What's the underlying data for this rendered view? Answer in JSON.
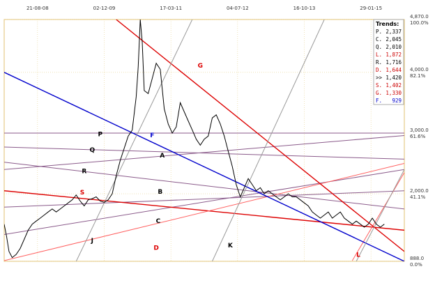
{
  "chart_data": {
    "type": "line",
    "x_tick_labels": [
      "21-08-08",
      "02-12-09",
      "17-03-11",
      "04-07-12",
      "16-10-13",
      "29-01-15"
    ],
    "y_tick_labels": [
      {
        "price": "4,870.0",
        "pct": "100.0%"
      },
      {
        "price": "4,000.0",
        "pct": "82.1%"
      },
      {
        "price": "3,000.0",
        "pct": "61.6%"
      },
      {
        "price": "2,000.0",
        "pct": "41.1%"
      },
      {
        "price": "888.0",
        "pct": "0.0%"
      }
    ],
    "ylim": [
      888,
      4870
    ],
    "grid": true,
    "legend_position": "top-right",
    "legend": {
      "title": "Trends:",
      "items": [
        {
          "label": "P.",
          "value": "2,337",
          "color": "#000000"
        },
        {
          "label": "C.",
          "value": "2,045",
          "color": "#000000"
        },
        {
          "label": "Q.",
          "value": "2,010",
          "color": "#000000"
        },
        {
          "label": "L.",
          "value": "1,872",
          "color": "#cc0000"
        },
        {
          "label": "R.",
          "value": "1,716",
          "color": "#000000"
        },
        {
          "label": "D.",
          "value": "1,644",
          "color": "#cc0000"
        },
        {
          "label": ">>",
          "value": "1,420",
          "color": "#000000"
        },
        {
          "label": "S.",
          "value": "1,402",
          "color": "#cc0000"
        },
        {
          "label": "G.",
          "value": "1,330",
          "color": "#cc0000"
        },
        {
          "label": "F.",
          "value": "929",
          "color": "#0000cc"
        }
      ]
    },
    "series": [
      {
        "values": [
          [
            0.0,
            1500
          ],
          [
            0.006,
            1300
          ],
          [
            0.012,
            1050
          ],
          [
            0.02,
            950
          ],
          [
            0.03,
            1000
          ],
          [
            0.04,
            1100
          ],
          [
            0.05,
            1250
          ],
          [
            0.06,
            1400
          ],
          [
            0.07,
            1500
          ],
          [
            0.08,
            1550
          ],
          [
            0.09,
            1600
          ],
          [
            0.1,
            1650
          ],
          [
            0.11,
            1700
          ],
          [
            0.12,
            1750
          ],
          [
            0.13,
            1700
          ],
          [
            0.14,
            1750
          ],
          [
            0.15,
            1800
          ],
          [
            0.16,
            1850
          ],
          [
            0.17,
            1900
          ],
          [
            0.18,
            1980
          ],
          [
            0.19,
            1880
          ],
          [
            0.2,
            1800
          ],
          [
            0.21,
            1900
          ],
          [
            0.22,
            1920
          ],
          [
            0.23,
            1950
          ],
          [
            0.24,
            1880
          ],
          [
            0.25,
            1860
          ],
          [
            0.26,
            1900
          ],
          [
            0.27,
            2000
          ],
          [
            0.28,
            2300
          ],
          [
            0.29,
            2550
          ],
          [
            0.3,
            2750
          ],
          [
            0.31,
            2950
          ],
          [
            0.32,
            3050
          ],
          [
            0.33,
            3600
          ],
          [
            0.335,
            4100
          ],
          [
            0.34,
            4870
          ],
          [
            0.345,
            4500
          ],
          [
            0.35,
            3700
          ],
          [
            0.36,
            3650
          ],
          [
            0.37,
            3900
          ],
          [
            0.38,
            4150
          ],
          [
            0.39,
            4050
          ],
          [
            0.4,
            3400
          ],
          [
            0.41,
            3150
          ],
          [
            0.42,
            3000
          ],
          [
            0.43,
            3100
          ],
          [
            0.44,
            3500
          ],
          [
            0.45,
            3350
          ],
          [
            0.46,
            3200
          ],
          [
            0.47,
            3050
          ],
          [
            0.48,
            2900
          ],
          [
            0.49,
            2800
          ],
          [
            0.5,
            2900
          ],
          [
            0.51,
            2950
          ],
          [
            0.52,
            3250
          ],
          [
            0.53,
            3300
          ],
          [
            0.54,
            3150
          ],
          [
            0.55,
            2950
          ],
          [
            0.56,
            2700
          ],
          [
            0.57,
            2450
          ],
          [
            0.58,
            2150
          ],
          [
            0.59,
            1950
          ],
          [
            0.6,
            2100
          ],
          [
            0.61,
            2250
          ],
          [
            0.62,
            2150
          ],
          [
            0.63,
            2050
          ],
          [
            0.64,
            2100
          ],
          [
            0.65,
            2000
          ],
          [
            0.66,
            2050
          ],
          [
            0.67,
            2000
          ],
          [
            0.68,
            1950
          ],
          [
            0.69,
            1900
          ],
          [
            0.7,
            1950
          ],
          [
            0.71,
            2000
          ],
          [
            0.72,
            1950
          ],
          [
            0.73,
            1950
          ],
          [
            0.74,
            1900
          ],
          [
            0.75,
            1850
          ],
          [
            0.76,
            1800
          ],
          [
            0.77,
            1700
          ],
          [
            0.78,
            1650
          ],
          [
            0.79,
            1600
          ],
          [
            0.8,
            1650
          ],
          [
            0.81,
            1700
          ],
          [
            0.82,
            1600
          ],
          [
            0.83,
            1650
          ],
          [
            0.84,
            1700
          ],
          [
            0.85,
            1600
          ],
          [
            0.86,
            1550
          ],
          [
            0.87,
            1500
          ],
          [
            0.88,
            1550
          ],
          [
            0.89,
            1500
          ],
          [
            0.9,
            1450
          ],
          [
            0.91,
            1500
          ],
          [
            0.92,
            1600
          ],
          [
            0.93,
            1500
          ],
          [
            0.94,
            1450
          ],
          [
            0.95,
            1500
          ]
        ]
      }
    ],
    "trendlines": [
      {
        "name": "P",
        "color": "#8a5a8a",
        "from": [
          0.0,
          3000
        ],
        "to": [
          1.0,
          3000
        ]
      },
      {
        "name": "Q",
        "color": "#8a5a8a",
        "from": [
          0.0,
          2770
        ],
        "to": [
          1.0,
          2570
        ]
      },
      {
        "name": "R",
        "color": "#8a5a8a",
        "from": [
          0.0,
          2520
        ],
        "to": [
          1.0,
          1750
        ]
      },
      {
        "name": "B",
        "color": "#8a5a8a",
        "from": [
          0.0,
          1780
        ],
        "to": [
          1.0,
          2050
        ]
      },
      {
        "name": "C",
        "color": "#8a5a8a",
        "from": [
          0.0,
          1330
        ],
        "to": [
          1.0,
          2400
        ]
      },
      {
        "name": "A",
        "color": "#8a5a8a",
        "from": [
          0.0,
          2400
        ],
        "to": [
          1.0,
          2960
        ]
      },
      {
        "name": "S",
        "color": "#dd0000",
        "from": [
          0.0,
          2050
        ],
        "to": [
          1.0,
          1400
        ]
      },
      {
        "name": "D",
        "color": "#ff6060",
        "from": [
          0.0,
          900
        ],
        "to": [
          1.0,
          2500
        ]
      },
      {
        "name": "L",
        "color": "#ff6060",
        "from": [
          0.87,
          900
        ],
        "to": [
          1.0,
          2350
        ]
      },
      {
        "name": "G",
        "color": "#dd0000",
        "from": [
          0.28,
          4870
        ],
        "to": [
          1.0,
          1050
        ]
      },
      {
        "name": "F",
        "color": "#0000cc",
        "from": [
          0.0,
          4000
        ],
        "to": [
          1.0,
          888
        ]
      },
      {
        "name": "J",
        "color": "#999999",
        "from": [
          0.18,
          888
        ],
        "to": [
          0.47,
          4870
        ]
      },
      {
        "name": "K",
        "color": "#999999",
        "from": [
          0.52,
          888
        ],
        "to": [
          0.8,
          4870
        ]
      },
      {
        "name": "",
        "color": "#999999",
        "from": [
          0.88,
          888
        ],
        "to": [
          1.0,
          2400
        ]
      }
    ],
    "trend_labels": [
      {
        "text": "P",
        "at": [
          0.24,
          2950
        ],
        "color": "#000000"
      },
      {
        "text": "Q",
        "at": [
          0.22,
          2690
        ],
        "color": "#000000"
      },
      {
        "text": "R",
        "at": [
          0.2,
          2340
        ],
        "color": "#000000"
      },
      {
        "text": "S",
        "at": [
          0.195,
          1990
        ],
        "color": "#dd0000"
      },
      {
        "text": "F",
        "at": [
          0.37,
          2930
        ],
        "color": "#0000cc"
      },
      {
        "text": "A",
        "at": [
          0.395,
          2600
        ],
        "color": "#000000"
      },
      {
        "text": "B",
        "at": [
          0.39,
          2000
        ],
        "color": "#000000"
      },
      {
        "text": "C",
        "at": [
          0.385,
          1520
        ],
        "color": "#000000"
      },
      {
        "text": "G",
        "at": [
          0.49,
          4080
        ],
        "color": "#dd0000"
      },
      {
        "text": "J",
        "at": [
          0.22,
          1200
        ],
        "color": "#000000"
      },
      {
        "text": "D",
        "at": [
          0.38,
          1080
        ],
        "color": "#dd0000"
      },
      {
        "text": "K",
        "at": [
          0.565,
          1120
        ],
        "color": "#000000"
      },
      {
        "text": "L",
        "at": [
          0.885,
          960
        ],
        "color": "#dd0000"
      }
    ]
  }
}
